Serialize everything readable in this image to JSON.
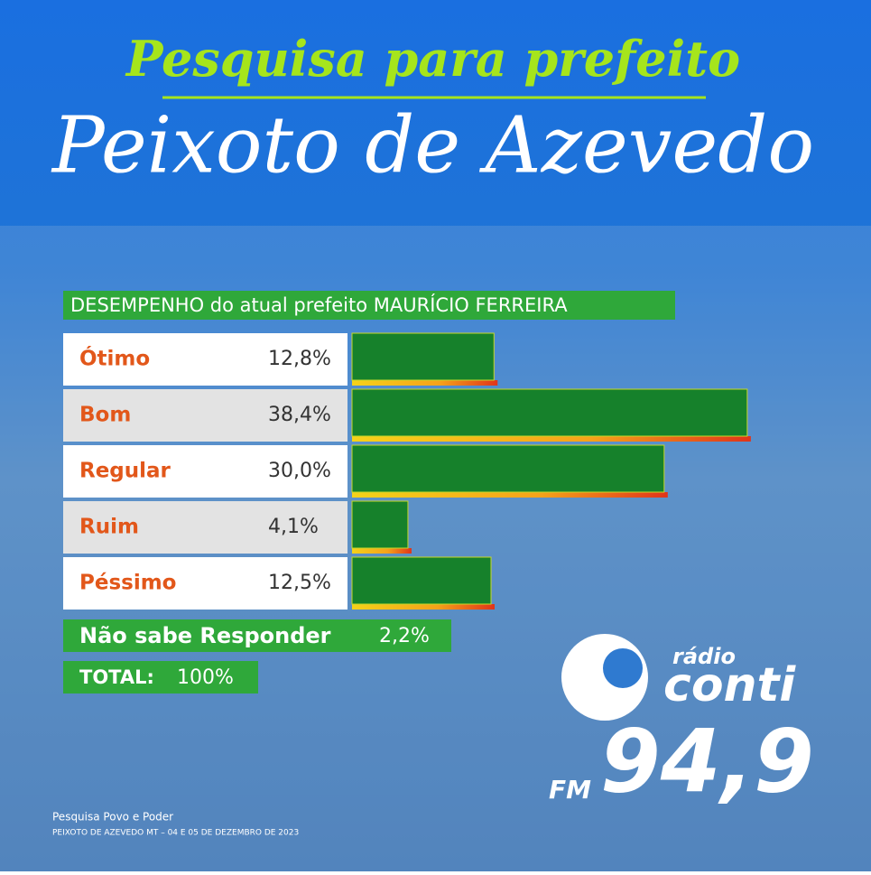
{
  "header": {
    "title": "Pesquisa para prefeito",
    "city": "Peixoto de Azevedo"
  },
  "chart_data": {
    "type": "bar",
    "orientation": "horizontal",
    "subtitle": "DESEMPENHO do atual prefeito MAURÍCIO FERREIRA",
    "categories": [
      "Ótimo",
      "Bom",
      "Regular",
      "Ruim",
      "Péssimo"
    ],
    "values": [
      12.8,
      38.4,
      30.0,
      4.1,
      12.5
    ],
    "value_labels": [
      "12,8%",
      "38,4%",
      "30,0%",
      "4,1%",
      "12,5%"
    ],
    "color": "#16812b",
    "extra": {
      "label": "Não sabe Responder",
      "value": 2.2,
      "value_label": "2,2%"
    },
    "total": {
      "label": "TOTAL:",
      "value": 100,
      "value_label": "100%"
    }
  },
  "logo": {
    "small": "rádio",
    "name": "conti",
    "band": "FM",
    "frequency": "94,9"
  },
  "footer": {
    "source": "Pesquisa Povo e Poder",
    "details": "PEIXOTO DE AZEVEDO MT – 04 E 05 DE DEZEMBRO DE 2023"
  }
}
